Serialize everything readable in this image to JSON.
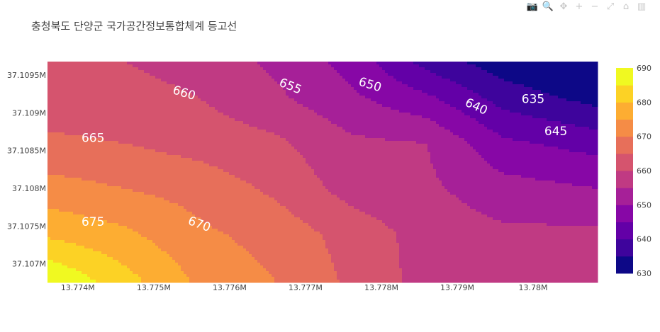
{
  "title": "충청북도 단양군 국가공간정보통합체계 등고선",
  "modebar": [
    {
      "name": "camera-icon",
      "glyph": "📷"
    },
    {
      "name": "zoom-icon",
      "glyph": "🔍"
    },
    {
      "name": "pan-icon",
      "glyph": "✥"
    },
    {
      "name": "zoom-in-icon",
      "glyph": "+"
    },
    {
      "name": "zoom-out-icon",
      "glyph": "−"
    },
    {
      "name": "autoscale-icon",
      "glyph": "⤢"
    },
    {
      "name": "reset-axes-icon",
      "glyph": "⌂"
    },
    {
      "name": "plotly-logo-icon",
      "glyph": "▥"
    }
  ],
  "chart_data": {
    "type": "contour",
    "title": "충청북도 단양군 국가공간정보통합체계 등고선",
    "x_ticks": [
      {
        "value": 13.774,
        "label": "13.774M"
      },
      {
        "value": 13.775,
        "label": "13.775M"
      },
      {
        "value": 13.776,
        "label": "13.776M"
      },
      {
        "value": 13.777,
        "label": "13.777M"
      },
      {
        "value": 13.778,
        "label": "13.778M"
      },
      {
        "value": 13.779,
        "label": "13.779M"
      },
      {
        "value": 13.78,
        "label": "13.78M"
      }
    ],
    "y_ticks": [
      {
        "value": 37.1095,
        "label": "37.1095M"
      },
      {
        "value": 37.109,
        "label": "37.109M"
      },
      {
        "value": 37.1085,
        "label": "37.1085M"
      },
      {
        "value": 37.108,
        "label": "37.108M"
      },
      {
        "value": 37.1075,
        "label": "37.1075M"
      },
      {
        "value": 37.107,
        "label": "37.107M"
      }
    ],
    "xlim": [
      13.7736,
      13.78085
    ],
    "ylim": [
      37.10678,
      37.10968
    ],
    "contour_start": 630,
    "contour_end": 690,
    "contour_step": 5,
    "colorscale": [
      "#0d0887",
      "#3e049c",
      "#6300a7",
      "#8707a6",
      "#a62098",
      "#c03a83",
      "#d5546e",
      "#e76f5a",
      "#f58c46",
      "#fdad32",
      "#fcd225",
      "#f0f921"
    ],
    "colorbar_ticks": [
      630,
      640,
      650,
      660,
      670,
      680,
      690
    ],
    "contour_labels": [
      {
        "value": 660,
        "x": 13.7754,
        "y": 37.10926,
        "angle": 17
      },
      {
        "value": 655,
        "x": 13.7768,
        "y": 37.10935,
        "angle": 22
      },
      {
        "value": 650,
        "x": 13.77785,
        "y": 37.10937,
        "angle": 17
      },
      {
        "value": 640,
        "x": 13.77925,
        "y": 37.10908,
        "angle": 25
      },
      {
        "value": 635,
        "x": 13.78,
        "y": 37.10918,
        "angle": 0
      },
      {
        "value": 645,
        "x": 13.7803,
        "y": 37.10875,
        "angle": 0
      },
      {
        "value": 665,
        "x": 13.7742,
        "y": 37.10866,
        "angle": 0
      },
      {
        "value": 675,
        "x": 13.7742,
        "y": 37.10755,
        "angle": 0
      },
      {
        "value": 670,
        "x": 13.7756,
        "y": 37.10752,
        "angle": 20
      }
    ],
    "elevation_grid": {
      "x": [
        13.7736,
        13.7746,
        13.7756,
        13.7766,
        13.7776,
        13.7786,
        13.7796,
        13.78085
      ],
      "y": [
        37.10678,
        37.1074,
        37.108,
        37.1086,
        37.1092,
        37.10968
      ],
      "z": [
        [
          690,
          682,
          674,
          670,
          664,
          658,
          656,
          656
        ],
        [
          679,
          676,
          671,
          668,
          663,
          658,
          656,
          656
        ],
        [
          672,
          670,
          668,
          664,
          658,
          656,
          652,
          650
        ],
        [
          666,
          665,
          663,
          661,
          656,
          655,
          646,
          643
        ],
        [
          662,
          662,
          660,
          656,
          651,
          646,
          638,
          633
        ],
        [
          660,
          660,
          658,
          654,
          648,
          638,
          632,
          628
        ]
      ]
    }
  }
}
